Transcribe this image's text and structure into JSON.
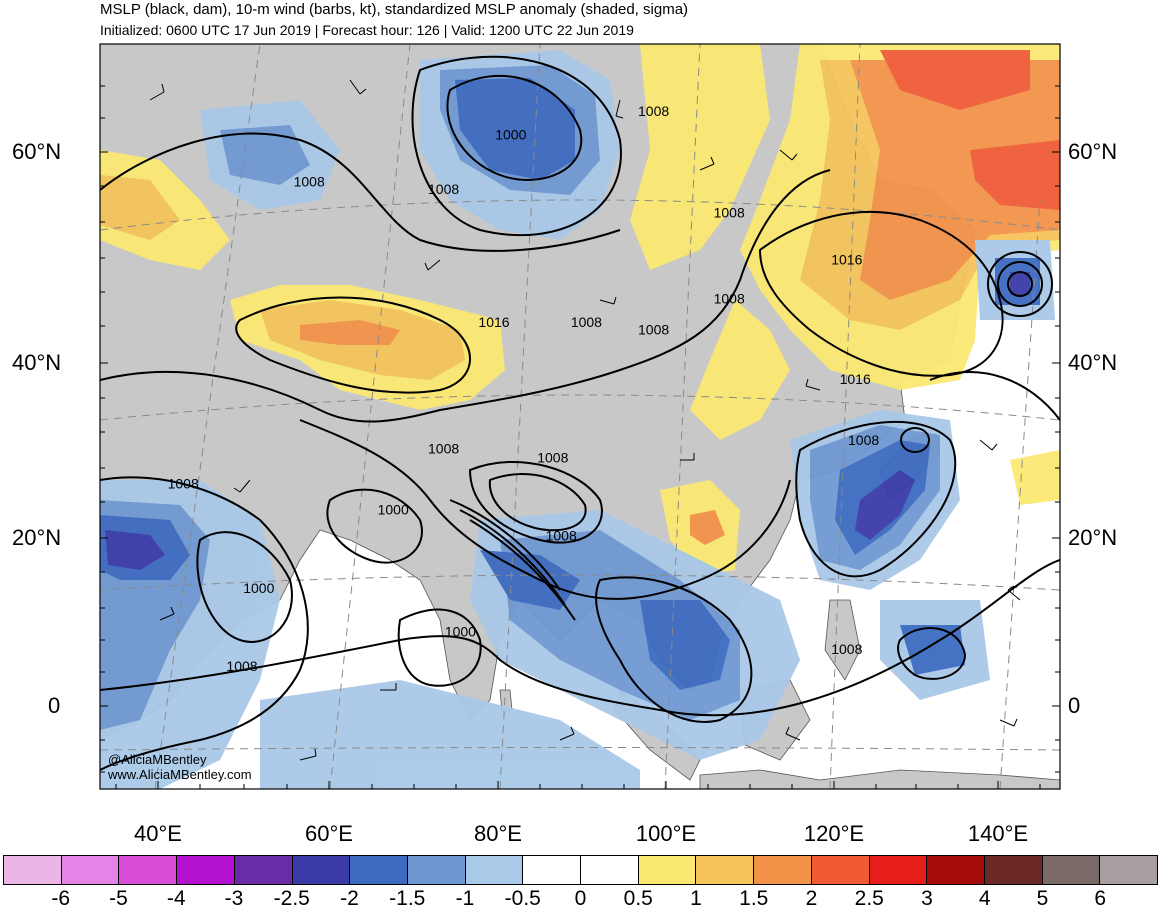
{
  "header": {
    "title": "MSLP (black, dam), 10-m wind (barbs, kt), standardized MSLP anomaly (shaded, sigma)",
    "subtitle": "Initialized: 0600 UTC 17 Jun 2019 | Forecast hour: 126 | Valid: 1200 UTC 22 Jun 2019"
  },
  "axes": {
    "left_lat_labels": [
      "60°N",
      "40°N",
      "20°N",
      "0"
    ],
    "right_lat_labels": [
      "60°N",
      "40°N",
      "20°N",
      "0"
    ],
    "lon_labels": [
      "40°E",
      "60°E",
      "80°E",
      "100°E",
      "120°E",
      "140°E"
    ]
  },
  "contour_labels": [
    {
      "text": "1008",
      "lon": 58,
      "lat": 62
    },
    {
      "text": "1008",
      "lon": 74,
      "lat": 61
    },
    {
      "text": "1000",
      "lon": 82,
      "lat": 68
    },
    {
      "text": "1008",
      "lon": 99,
      "lat": 71
    },
    {
      "text": "1008",
      "lon": 108,
      "lat": 58
    },
    {
      "text": "1016",
      "lon": 122,
      "lat": 52
    },
    {
      "text": "1008",
      "lon": 108,
      "lat": 47
    },
    {
      "text": "1008",
      "lon": 91,
      "lat": 44
    },
    {
      "text": "1008",
      "lon": 99,
      "lat": 43
    },
    {
      "text": "1016",
      "lon": 80,
      "lat": 44
    },
    {
      "text": "1016",
      "lon": 123,
      "lat": 37
    },
    {
      "text": "1008",
      "lon": 124,
      "lat": 30
    },
    {
      "text": "1008",
      "lon": 74,
      "lat": 29
    },
    {
      "text": "1008",
      "lon": 87,
      "lat": 28
    },
    {
      "text": "1008",
      "lon": 43,
      "lat": 25
    },
    {
      "text": "1000",
      "lon": 68,
      "lat": 22
    },
    {
      "text": "1008",
      "lon": 88,
      "lat": 19
    },
    {
      "text": "1000",
      "lon": 52,
      "lat": 13
    },
    {
      "text": "1000",
      "lon": 76,
      "lat": 8
    },
    {
      "text": "1008",
      "lon": 50,
      "lat": 4
    },
    {
      "text": "1008",
      "lon": 122,
      "lat": 6
    }
  ],
  "credits": [
    "@AliciaMBentley",
    "www.AliciaMBentley.com"
  ],
  "colorbar": {
    "colors": [
      "#ebb6e6",
      "#e384e6",
      "#d84ed9",
      "#b411d0",
      "#6a2ba6",
      "#3a3ba8",
      "#3d6bc0",
      "#6f98d2",
      "#a9c9e8",
      "#ffffff",
      "#ffffff",
      "#fbe872",
      "#f5c45a",
      "#f3934a",
      "#f05b36",
      "#e61d1a",
      "#a40b0b",
      "#6b2a26",
      "#7a6b68",
      "#a8a0a0"
    ],
    "labels": [
      "-6",
      "-5",
      "-4",
      "-3",
      "-2.5",
      "-2",
      "-1.5",
      "-1",
      "-0.5",
      "0",
      "0.5",
      "1",
      "1.5",
      "2",
      "2.5",
      "3",
      "4",
      "5",
      "6"
    ]
  },
  "colors": {
    "land": "#c8c8c8",
    "ocean": "#ffffff",
    "contour": "#000000"
  }
}
